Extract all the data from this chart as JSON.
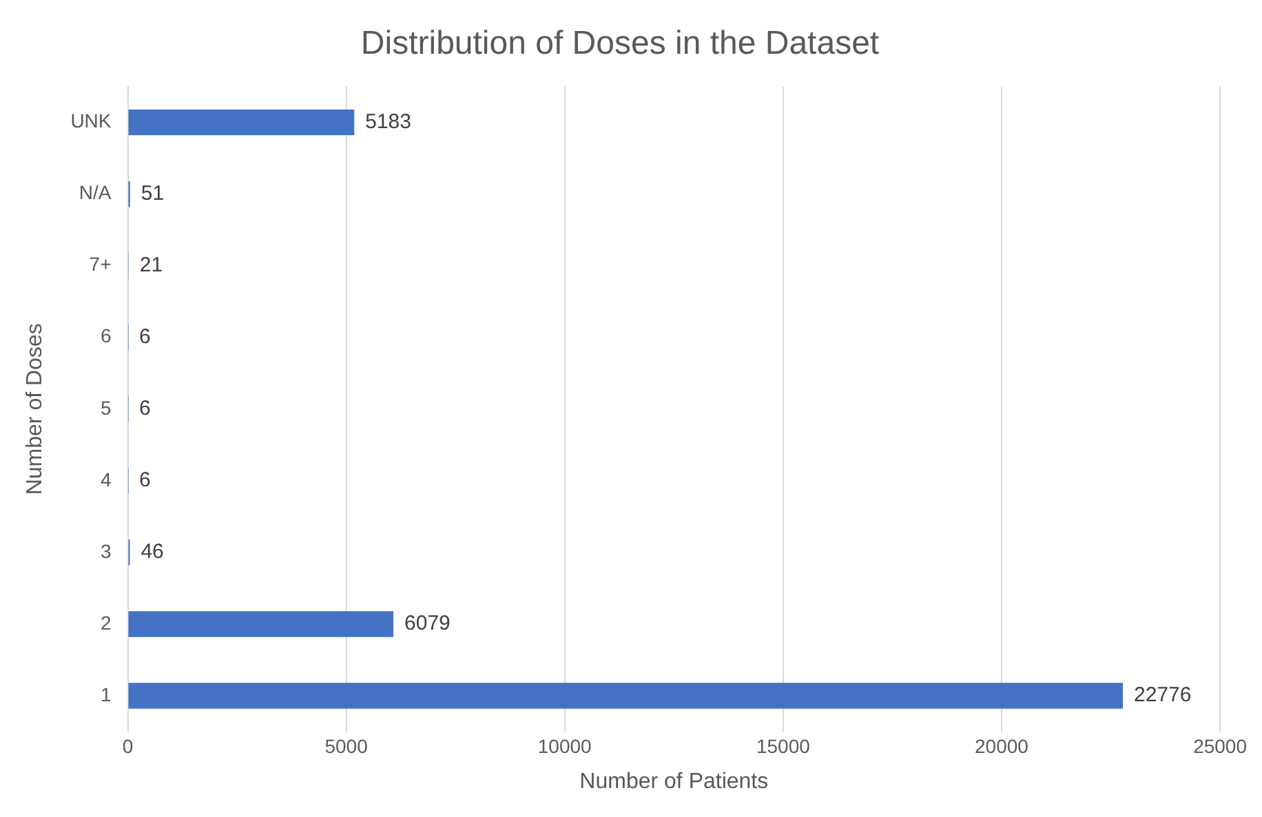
{
  "chart_data": {
    "type": "bar",
    "orientation": "horizontal",
    "title": "Distribution of Doses in the Dataset",
    "xlabel": "Number of Patients",
    "ylabel": "Number of Doses",
    "categories": [
      "UNK",
      "N/A",
      "7+",
      "6",
      "5",
      "4",
      "3",
      "2",
      "1"
    ],
    "values": [
      5183,
      51,
      21,
      6,
      6,
      6,
      46,
      6079,
      22776
    ],
    "color": "#4472c4",
    "xlim": [
      0,
      25000
    ],
    "xticks": [
      0,
      5000,
      10000,
      15000,
      20000,
      25000
    ],
    "grid": "x",
    "data_labels": true,
    "legend": false
  }
}
